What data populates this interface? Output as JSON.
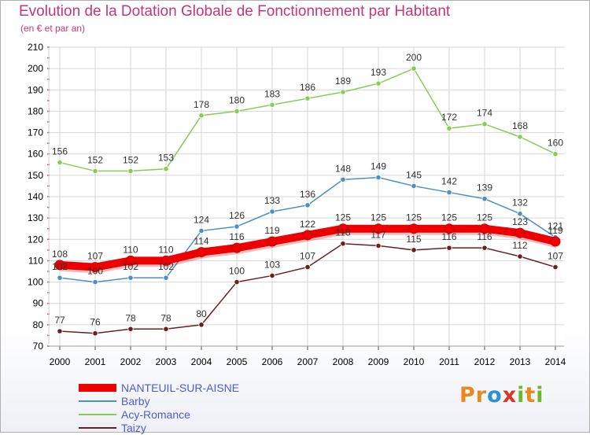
{
  "header": {
    "title": "Evolution de la Dotation Globale de Fonctionnement par Habitant",
    "subtitle": "(en € et par an)"
  },
  "logo": {
    "letters": [
      "P",
      "r",
      "o",
      "x",
      "i",
      "t",
      "i"
    ],
    "colors": [
      "#e8891e",
      "#e8891e",
      "#2f8fd6",
      "#d9352b",
      "#6cb82a",
      "#e8891e",
      "#6cb82a"
    ]
  },
  "chart_data": {
    "type": "line",
    "title": "Evolution de la Dotation Globale de Fonctionnement par Habitant",
    "subtitle": "(en € et par an)",
    "xlabel": "",
    "ylabel": "",
    "x": [
      2000,
      2001,
      2002,
      2003,
      2004,
      2005,
      2006,
      2007,
      2008,
      2009,
      2010,
      2011,
      2012,
      2013,
      2014
    ],
    "ylim": [
      70,
      210
    ],
    "yticks": [
      70,
      80,
      90,
      100,
      110,
      120,
      130,
      140,
      150,
      160,
      170,
      180,
      190,
      200,
      210
    ],
    "grid": "horizontal",
    "legend": "bottom-left",
    "series": [
      {
        "name": "NANTEUIL-SUR-AISNE",
        "color": "#ee0000",
        "values": [
          108,
          107,
          110,
          110,
          114,
          116,
          119,
          122,
          125,
          125,
          125,
          125,
          125,
          123,
          119
        ]
      },
      {
        "name": "Barby",
        "color": "#4a90c8",
        "values": [
          102,
          100,
          102,
          102,
          124,
          126,
          133,
          136,
          148,
          149,
          145,
          142,
          139,
          132,
          121
        ]
      },
      {
        "name": "Acy-Romance",
        "color": "#88cc55",
        "values": [
          156,
          152,
          152,
          153,
          178,
          180,
          183,
          186,
          189,
          193,
          200,
          172,
          174,
          168,
          160
        ]
      },
      {
        "name": "Taizy",
        "color": "#6b1e1e",
        "values": [
          77,
          76,
          78,
          78,
          80,
          100,
          103,
          107,
          118,
          117,
          115,
          116,
          116,
          112,
          107
        ]
      }
    ]
  }
}
